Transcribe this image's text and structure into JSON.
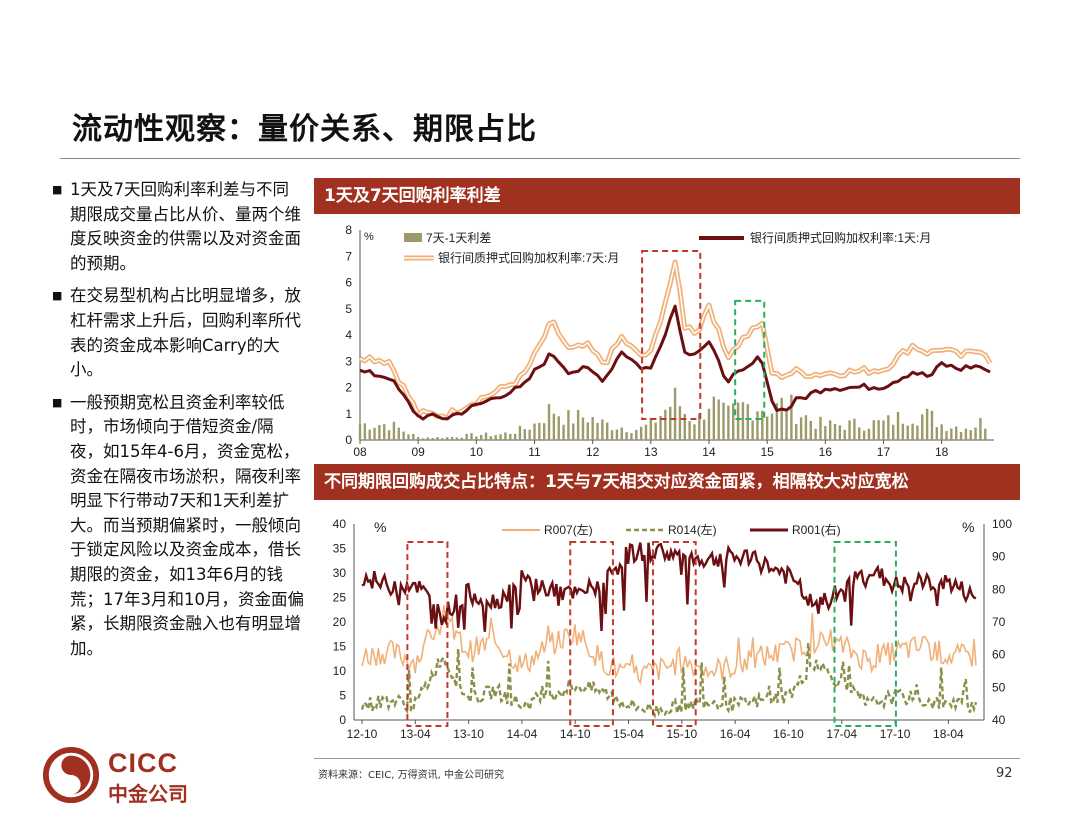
{
  "slide": {
    "title": "流动性观察：量价关系、期限占比",
    "page_number": "92",
    "source": "资料来源：CEIC, 万得资讯, 中金公司研究",
    "logo_latin": "CICC",
    "logo_cn": "中金公司"
  },
  "bullets": [
    "1天及7天回购利率利差与不同期限成交量占比从价、量两个维度反映资金的供需以及对资金面的预期。",
    "在交易型机构占比明显增多，放杠杆需求上升后，回购利率所代表的资金成本影响Carry的大小。",
    "一般预期宽松且资金利率较低时，市场倾向于借短资金/隔夜，如15年4-6月，资金宽松，资金在隔夜市场淤积，隔夜利率明显下行带动7天和1天利差扩大。而当预期偏紧时，一般倾向于锁定风险以及资金成本，借长期限的资金，如13年6月的钱荒；17年3月和10月，资金面偏紧，长期限资金融入也有明显增加。"
  ],
  "colors": {
    "brand": "#a0301f",
    "series_7d": "#f0b27a",
    "series_1d": "#6b0f12",
    "spread_bar": "#9c9a6a",
    "r014": "#8b8f4a",
    "box_red": "#c0392b",
    "box_green": "#27ae60"
  },
  "chart_data": [
    {
      "type": "line",
      "title": "1天及7天回购利率利差",
      "unit": "%",
      "x_ticks": [
        "08",
        "09",
        "10",
        "11",
        "12",
        "13",
        "14",
        "15",
        "16",
        "17",
        "18"
      ],
      "ylim": [
        0,
        8
      ],
      "y_ticks": [
        0,
        1,
        2,
        3,
        4,
        5,
        6,
        7,
        8
      ],
      "legend": [
        "7天-1天利差",
        "银行间质押式回购加权利率:1天:月",
        "银行间质押式回购加权利率:7天:月"
      ],
      "x": [
        2008.0,
        2008.5,
        2009.0,
        2009.5,
        2010.0,
        2010.4,
        2010.8,
        2011.0,
        2011.3,
        2011.6,
        2011.9,
        2012.2,
        2012.5,
        2012.8,
        2013.0,
        2013.45,
        2013.55,
        2013.8,
        2014.0,
        2014.3,
        2014.6,
        2014.9,
        2015.1,
        2015.3,
        2015.5,
        2015.8,
        2016.0,
        2016.5,
        2017.0,
        2017.5,
        2017.8,
        2018.0,
        2018.3,
        2018.5,
        2018.7,
        2018.9
      ],
      "series": [
        {
          "name": "银行间质押式回购加权利率:7天:月",
          "values": [
            3.2,
            3.0,
            1.0,
            0.95,
            1.5,
            1.9,
            2.4,
            3.2,
            4.5,
            3.4,
            3.6,
            2.9,
            3.9,
            3.2,
            3.3,
            6.9,
            4.4,
            4.1,
            5.2,
            3.2,
            3.9,
            4.5,
            2.4,
            2.5,
            2.6,
            2.5,
            2.55,
            2.6,
            2.7,
            3.6,
            3.3,
            3.5,
            3.2,
            3.3,
            3.5,
            2.8
          ]
        },
        {
          "name": "银行间质押式回购加权利率:1天:月",
          "values": [
            2.6,
            2.4,
            0.9,
            0.85,
            1.3,
            1.7,
            2.0,
            2.6,
            3.3,
            2.6,
            2.7,
            2.3,
            3.4,
            2.8,
            2.7,
            5.3,
            3.3,
            3.4,
            3.7,
            2.3,
            2.6,
            3.2,
            1.3,
            1.1,
            1.5,
            1.8,
            2.0,
            2.0,
            2.05,
            2.6,
            2.4,
            2.9,
            2.7,
            2.8,
            2.8,
            2.35
          ]
        },
        {
          "name": "7天-1天利差",
          "values": [
            0.6,
            0.6,
            0.1,
            0.1,
            0.2,
            0.2,
            0.4,
            0.6,
            1.2,
            0.8,
            0.9,
            0.6,
            0.5,
            0.4,
            0.6,
            1.6,
            1.1,
            0.7,
            1.5,
            0.9,
            1.3,
            1.3,
            1.1,
            1.4,
            1.1,
            0.7,
            0.55,
            0.6,
            0.65,
            1.0,
            0.9,
            0.6,
            0.5,
            0.5,
            0.7,
            0.45
          ]
        }
      ]
    },
    {
      "type": "line",
      "title": "不同期限回购成交占比特点：1天与7天相交对应资金面紧，相隔较大对应宽松",
      "unit_left": "%",
      "unit_right": "%",
      "x_ticks": [
        "12-10",
        "13-04",
        "13-10",
        "14-04",
        "14-10",
        "15-04",
        "15-10",
        "16-04",
        "16-10",
        "17-04",
        "17-10",
        "18-04"
      ],
      "ylim_left": [
        0,
        40
      ],
      "ylim_right": [
        40,
        100
      ],
      "y_ticks_left": [
        0,
        5,
        10,
        15,
        20,
        25,
        30,
        35,
        40
      ],
      "y_ticks_right": [
        40,
        50,
        60,
        70,
        80,
        90,
        100
      ],
      "legend": [
        "R007(左)",
        "R014(左)",
        "R001(右)"
      ],
      "x": [
        "12-10",
        "13-01",
        "13-04",
        "13-06",
        "13-10",
        "14-01",
        "14-04",
        "14-07",
        "14-10",
        "15-01",
        "15-04",
        "15-06",
        "15-10",
        "16-01",
        "16-04",
        "16-07",
        "16-10",
        "16-12",
        "17-03",
        "17-06",
        "17-10",
        "18-01",
        "18-04",
        "18-06"
      ],
      "series": [
        {
          "name": "R007(左)",
          "values": [
            13,
            14,
            12,
            20,
            14,
            16,
            11,
            15,
            18,
            12,
            9,
            10,
            12,
            10,
            11,
            13,
            14,
            16,
            15,
            12,
            14,
            15,
            13,
            13
          ]
        },
        {
          "name": "R014(左)",
          "values": [
            3,
            4,
            3,
            13,
            4,
            6,
            3,
            5,
            7,
            6,
            3,
            2,
            3,
            4,
            3,
            4,
            5,
            12,
            7,
            3,
            5,
            4,
            3,
            3
          ]
        },
        {
          "name": "R001(右)",
          "values": [
            84,
            81,
            82,
            72,
            79,
            76,
            83,
            80,
            78,
            82,
            91,
            92,
            90,
            89,
            90,
            88,
            84,
            74,
            80,
            86,
            81,
            82,
            82,
            77
          ]
        }
      ]
    }
  ]
}
